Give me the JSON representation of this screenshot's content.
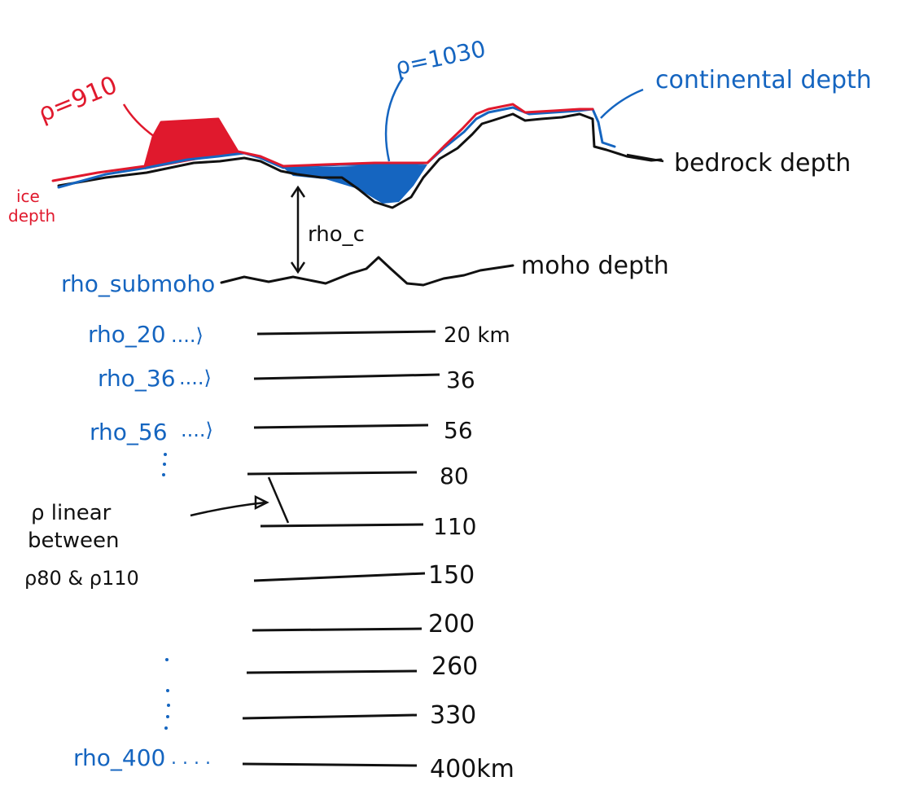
{
  "annotations": {
    "rho_ice": "ρ=910",
    "rho_water": "ρ=1030",
    "continental_depth": "continental depth",
    "bedrock_depth": "bedrock depth",
    "ice_depth_line1": "ice",
    "ice_depth_line2": "depth",
    "rho_c": "rho_c",
    "rho_submoho": "rho_submoho",
    "moho_depth": "moho depth"
  },
  "layers": [
    {
      "rho_label": "rho_20",
      "depth_label": "20 km"
    },
    {
      "rho_label": "rho_36",
      "depth_label": "36"
    },
    {
      "rho_label": "rho_56",
      "depth_label": "56"
    },
    {
      "rho_label": "",
      "depth_label": "80"
    },
    {
      "rho_label": "",
      "depth_label": "110"
    },
    {
      "rho_label": "",
      "depth_label": "150"
    },
    {
      "rho_label": "",
      "depth_label": "200"
    },
    {
      "rho_label": "",
      "depth_label": "260"
    },
    {
      "rho_label": "",
      "depth_label": "330"
    },
    {
      "rho_label": "rho_400",
      "depth_label": "400km"
    }
  ],
  "linear_note": {
    "line1": "ρ linear",
    "line2": "between",
    "line3": "ρ80 & ρ110"
  },
  "colors": {
    "ice": "#e0192d",
    "water": "#1565c0",
    "continental": "#1565c0",
    "bedrock": "#111111"
  }
}
